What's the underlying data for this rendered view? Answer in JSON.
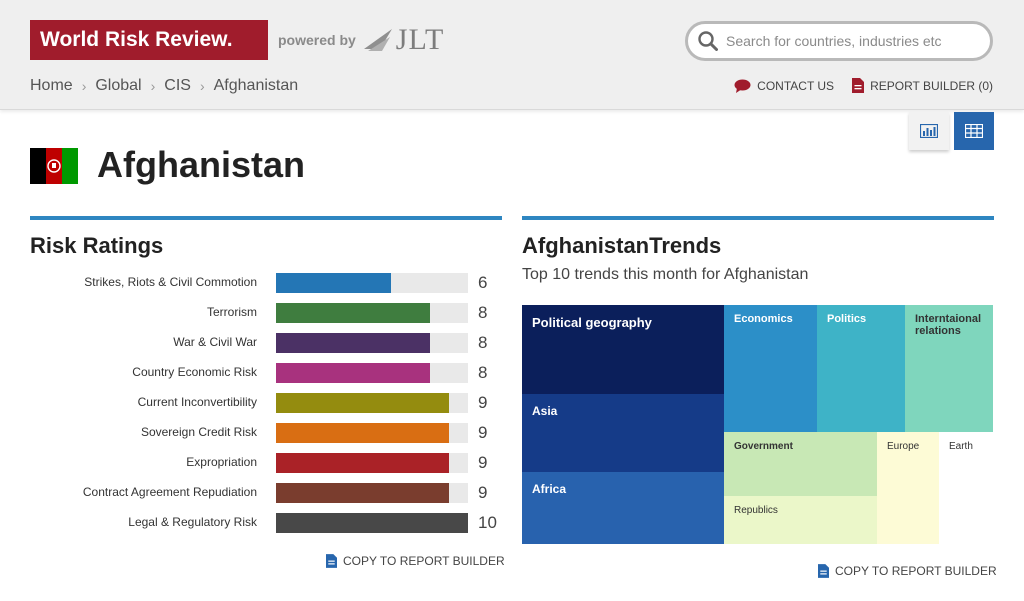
{
  "header": {
    "logo_text": "World Risk Review.",
    "powered_by": "powered by",
    "partner": "JLT",
    "search": {
      "placeholder": "Search for countries, industries etc",
      "value": ""
    },
    "links": {
      "contact": "CONTACT US",
      "report_builder": "REPORT BUILDER (0)"
    }
  },
  "breadcrumb": [
    "Home",
    "Global",
    "CIS",
    "Afghanistan"
  ],
  "country": {
    "name": "Afghanistan",
    "flag_colors": [
      "#000000",
      "#be0000",
      "#009900"
    ]
  },
  "risk_ratings": {
    "title": "Risk Ratings",
    "max": 10,
    "items": [
      {
        "label": "Strikes, Riots & Civil Commotion",
        "value": 6,
        "color": "#2476b5"
      },
      {
        "label": "Terrorism",
        "value": 8,
        "color": "#3f7d3f"
      },
      {
        "label": "War & Civil War",
        "value": 8,
        "color": "#4b3165"
      },
      {
        "label": "Country Economic Risk",
        "value": 8,
        "color": "#a8327e"
      },
      {
        "label": "Current Inconvertibility",
        "value": 9,
        "color": "#948c0f"
      },
      {
        "label": "Sovereign Credit Risk",
        "value": 9,
        "color": "#d96e13"
      },
      {
        "label": "Expropriation",
        "value": 9,
        "color": "#aa2227"
      },
      {
        "label": "Contract Agreement Repudiation",
        "value": 9,
        "color": "#7a3d2e"
      },
      {
        "label": "Legal & Regulatory Risk",
        "value": 10,
        "color": "#484848"
      }
    ],
    "copy_label": "COPY TO REPORT BUILDER"
  },
  "trends": {
    "title": "AfghanistanTrends",
    "subtitle": "Top 10 trends this month for Afghanistan",
    "tiles": [
      {
        "label": "Political geography",
        "color": "#0b1f5b",
        "dark": false
      },
      {
        "label": "Asia",
        "color": "#153b88",
        "dark": false
      },
      {
        "label": "Africa",
        "color": "#2862ae",
        "dark": false
      },
      {
        "label": "Economics",
        "color": "#2c8fc8",
        "dark": false
      },
      {
        "label": "Politics",
        "color": "#3eb3c7",
        "dark": false
      },
      {
        "label": "Interntaional relations",
        "color": "#7fd6bd",
        "dark": true
      },
      {
        "label": "Government",
        "color": "#c8e8b5",
        "dark": true
      },
      {
        "label": "Republics",
        "color": "#ebf7c9",
        "dark": true
      },
      {
        "label": "Europe",
        "color": "#fdfbd6",
        "dark": true
      },
      {
        "label": "Earth",
        "color": "#ffffff",
        "dark": true
      }
    ],
    "copy_label": "COPY TO REPORT BUILDER"
  }
}
